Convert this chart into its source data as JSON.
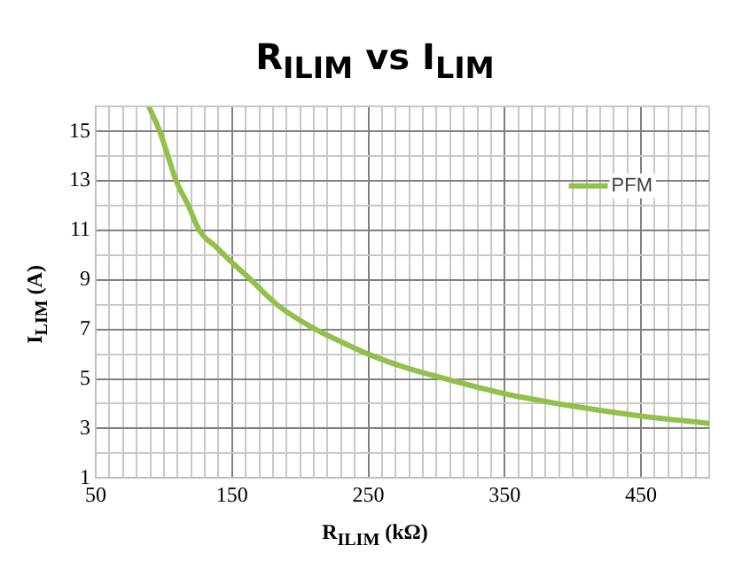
{
  "chart_data": {
    "type": "line",
    "title": "R$_{ILIM}$ vs I$_{LIM}$",
    "xlabel": "R$_{ILIM}$ (kΩ)",
    "ylabel": "I$_{LIM}$ (A)",
    "xlim": [
      50,
      500
    ],
    "xticks": [
      50,
      {
        "value": 60,
        "label": null
      },
      {
        "value": 70,
        "label": null
      },
      {
        "value": 80,
        "label": null
      },
      {
        "value": 90,
        "label": null
      },
      {
        "value": 100,
        "label": null
      },
      {
        "value": 110,
        "label": null
      },
      {
        "value": 120,
        "label": null
      },
      {
        "value": 130,
        "label": null
      },
      {
        "value": 140,
        "label": null
      },
      150,
      {
        "value": 160,
        "label": null
      },
      {
        "value": 170,
        "label": null
      },
      {
        "value": 180,
        "label": null
      },
      {
        "value": 190,
        "label": null
      },
      {
        "value": 200,
        "label": null
      },
      {
        "value": 210,
        "label": null
      },
      {
        "value": 220,
        "label": null
      },
      {
        "value": 230,
        "label": null
      },
      {
        "value": 240,
        "label": null
      },
      250,
      {
        "value": 260,
        "label": null
      },
      {
        "value": 270,
        "label": null
      },
      {
        "value": 280,
        "label": null
      },
      {
        "value": 290,
        "label": null
      },
      {
        "value": 300,
        "label": null
      },
      {
        "value": 310,
        "label": null
      },
      {
        "value": 320,
        "label": null
      },
      {
        "value": 330,
        "label": null
      },
      {
        "value": 340,
        "label": null
      },
      350,
      {
        "value": 360,
        "label": null
      },
      {
        "value": 370,
        "label": null
      },
      {
        "value": 380,
        "label": null
      },
      {
        "value": 390,
        "label": null
      },
      {
        "value": 400,
        "label": null
      },
      {
        "value": 410,
        "label": null
      },
      {
        "value": 420,
        "label": null
      },
      {
        "value": 430,
        "label": null
      },
      {
        "value": 440,
        "label": null
      },
      450,
      {
        "value": 460,
        "label": null
      },
      {
        "value": 470,
        "label": null
      },
      {
        "value": 480,
        "label": null
      },
      {
        "value": 490,
        "label": null
      },
      {
        "value": 500,
        "label": null
      }
    ],
    "ylim": [
      1,
      16
    ],
    "yticks": [
      1,
      {
        "value": 2,
        "label": null
      },
      3,
      {
        "value": 4,
        "label": null
      },
      5,
      {
        "value": 6,
        "label": null
      },
      7,
      {
        "value": 8,
        "label": null
      },
      9,
      {
        "value": 10,
        "label": null
      },
      11,
      {
        "value": 12,
        "label": null
      },
      13,
      {
        "value": 14,
        "label": null
      },
      15,
      {
        "value": 16,
        "label": null
      }
    ],
    "grid": true,
    "legend": "right",
    "marker": "none",
    "line_style": "solid",
    "series": [
      {
        "name": "PFM",
        "color": "#92c04a",
        "x": [
          89,
          97,
          103,
          109,
          118,
          126,
          139,
          150,
          162,
          183,
          208,
          230,
          250,
          275,
          300,
          350,
          400,
          450,
          500
        ],
        "values": [
          16,
          15,
          14,
          13,
          12,
          11,
          10.3,
          9.7,
          9.1,
          8,
          7.1,
          6.5,
          6,
          5.5,
          5.1,
          4.4,
          3.9,
          3.5,
          3.2
        ]
      }
    ]
  }
}
